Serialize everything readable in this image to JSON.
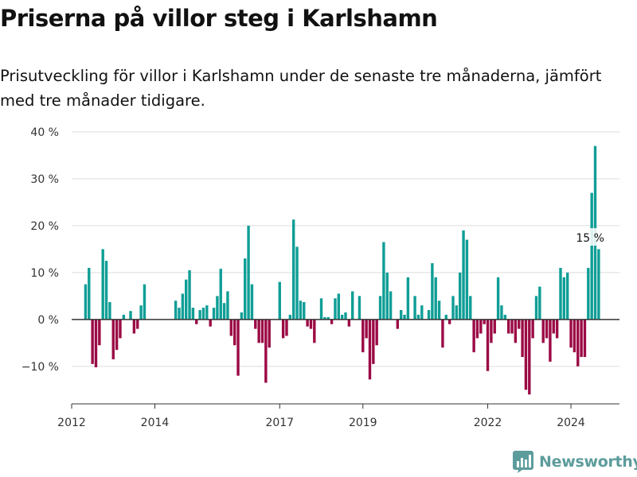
{
  "title": "Priserna på villor steg i Karlshamn",
  "subtitle": "Prisutveckling för villor i Karlshamn under de senaste tre månaderna, jämfört med tre månader tidigare.",
  "brand": {
    "name": "Newsworthy",
    "logo_icon": "bar-chart-logo-icon"
  },
  "chart_data": {
    "type": "bar",
    "ylim": [
      -18,
      41
    ],
    "y_ticks": [
      -10,
      0,
      10,
      20,
      30,
      40
    ],
    "y_tick_labels": [
      "−10 %",
      "0 %",
      "10 %",
      "20 %",
      "30 %",
      "40 %"
    ],
    "x_ticks": [
      "2012-01",
      "2014-01",
      "2017-01",
      "2019-01",
      "2022-01",
      "2024-01"
    ],
    "x_tick_labels": [
      "2012",
      "2014",
      "2017",
      "2019",
      "2022",
      "2024"
    ],
    "x_range": [
      "2012-01",
      "2025-03"
    ],
    "grid": true,
    "colors": {
      "positive": "#0f9e96",
      "negative": "#9b0a45",
      "grid": "#dddddd",
      "zero_line": "#333333",
      "axis": "#333333"
    },
    "annotation": {
      "label": "15 %",
      "x": "2024-07"
    },
    "series": [
      {
        "start": "2012-05",
        "values": [
          7.5,
          11,
          -9.5,
          -10.2,
          -5.5,
          15,
          12.5,
          3.7,
          -8.5,
          -6.5,
          -4,
          1,
          0,
          1.8,
          -3,
          -2,
          3,
          7.5,
          0,
          0,
          0,
          0,
          0,
          0,
          0,
          0,
          4,
          2.5,
          5.5,
          8.5,
          10.5,
          2.5,
          -1,
          2,
          2.5,
          3,
          -1.5,
          2.5,
          5,
          10.8,
          3.5,
          6,
          -3.5,
          -5.5,
          -12,
          1.5,
          13,
          20,
          7.5,
          -2,
          -5,
          -5,
          -13.5,
          -6,
          0,
          0,
          8,
          -4,
          -3.5,
          1,
          21.3,
          15.5,
          4,
          3.7,
          -1.5,
          -2,
          -5,
          0,
          4.5,
          0.5,
          0.5,
          -1,
          4.5,
          5.5,
          1,
          1.5,
          -1.5,
          6,
          0,
          5,
          -7,
          -4,
          -12.8,
          -9.5,
          -5.5,
          5,
          16.5,
          10,
          6,
          0,
          -2,
          2,
          1,
          9,
          0,
          5,
          1,
          3,
          0,
          2,
          12,
          9,
          4,
          -6,
          1,
          -1,
          5,
          3,
          10,
          19,
          17,
          5,
          -7,
          -4,
          -3,
          -1,
          -11,
          -5,
          -3,
          9,
          3,
          1,
          -3,
          -3,
          -5,
          -2,
          -8,
          -15,
          -16,
          -4,
          5,
          7,
          -5,
          -4,
          -9,
          -3,
          -4,
          11,
          9,
          10,
          -6,
          -7,
          -10,
          -8,
          -8,
          11,
          27,
          37,
          15
        ]
      }
    ]
  }
}
